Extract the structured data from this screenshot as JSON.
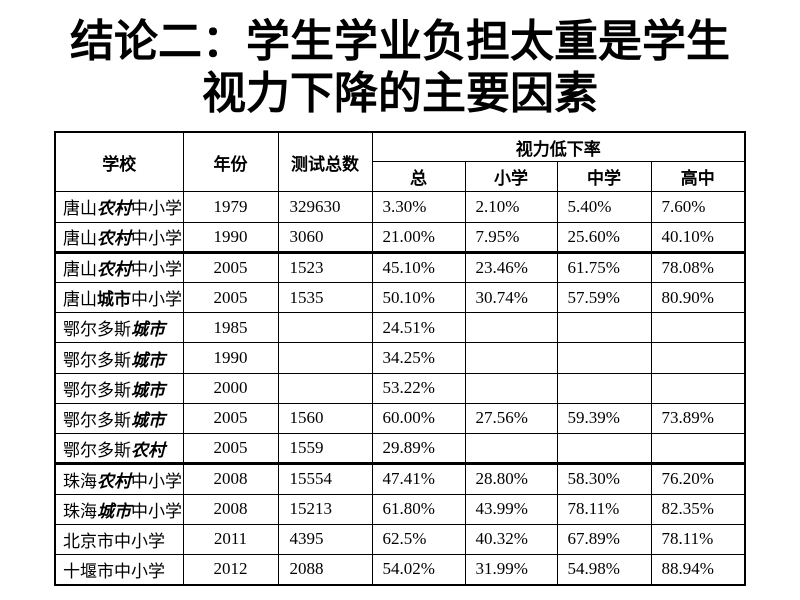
{
  "slide": {
    "title_line1": "结论二：学生学业负担太重是学生",
    "title_line2": "视力下降的主要因素"
  },
  "table": {
    "headers": {
      "school": "学校",
      "year": "年份",
      "tested_total": "测试总数",
      "low_vision_rate": "视力低下率",
      "sub_total": "总",
      "sub_primary": "小学",
      "sub_middle": "中学",
      "sub_high": "高中"
    },
    "rows": [
      {
        "school_pre": "唐山",
        "school_em": "农村",
        "school_post": "中小学",
        "em_style": "bold-italic",
        "year": "1979",
        "tested": "329630",
        "rate_total": "3.30%",
        "rate_primary": "2.10%",
        "rate_middle": "5.40%",
        "rate_high": "7.60%",
        "section_start": false
      },
      {
        "school_pre": "唐山",
        "school_em": "农村",
        "school_post": "中小学",
        "em_style": "bold-italic",
        "year": "1990",
        "tested": "3060",
        "rate_total": "21.00%",
        "rate_primary": "7.95%",
        "rate_middle": "25.60%",
        "rate_high": "40.10%",
        "section_start": false
      },
      {
        "school_pre": "唐山",
        "school_em": "农村",
        "school_post": "中小学",
        "em_style": "bold-italic",
        "year": "2005",
        "tested": "1523",
        "rate_total": "45.10%",
        "rate_primary": "23.46%",
        "rate_middle": "61.75%",
        "rate_high": "78.08%",
        "section_start": true
      },
      {
        "school_pre": "唐山",
        "school_em": "城市",
        "school_post": "中小学",
        "em_style": "bold",
        "year": "2005",
        "tested": "1535",
        "rate_total": "50.10%",
        "rate_primary": "30.74%",
        "rate_middle": "57.59%",
        "rate_high": "80.90%",
        "section_start": false
      },
      {
        "school_pre": "鄂尔多斯",
        "school_em": "城市",
        "school_post": "",
        "em_style": "bold-italic",
        "year": "1985",
        "tested": "",
        "rate_total": "24.51%",
        "rate_primary": "",
        "rate_middle": "",
        "rate_high": "",
        "section_start": false
      },
      {
        "school_pre": "鄂尔多斯",
        "school_em": "城市",
        "school_post": "",
        "em_style": "bold-italic",
        "year": "1990",
        "tested": "",
        "rate_total": "34.25%",
        "rate_primary": "",
        "rate_middle": "",
        "rate_high": "",
        "section_start": false
      },
      {
        "school_pre": "鄂尔多斯",
        "school_em": "城市",
        "school_post": "",
        "em_style": "bold-italic",
        "year": "2000",
        "tested": "",
        "rate_total": "53.22%",
        "rate_primary": "",
        "rate_middle": "",
        "rate_high": "",
        "section_start": false
      },
      {
        "school_pre": "鄂尔多斯",
        "school_em": "城市",
        "school_post": "",
        "em_style": "bold-italic",
        "year": "2005",
        "tested": "1560",
        "rate_total": "60.00%",
        "rate_primary": "27.56%",
        "rate_middle": "59.39%",
        "rate_high": "73.89%",
        "section_start": false
      },
      {
        "school_pre": "鄂尔多斯",
        "school_em": "农村",
        "school_post": "",
        "em_style": "bold-italic",
        "year": "2005",
        "tested": "1559",
        "rate_total": "29.89%",
        "rate_primary": "",
        "rate_middle": "",
        "rate_high": "",
        "section_start": false
      },
      {
        "school_pre": "珠海",
        "school_em": "农村",
        "school_post": "中小学",
        "em_style": "bold-italic",
        "year": "2008",
        "tested": "15554",
        "rate_total": "47.41%",
        "rate_primary": "28.80%",
        "rate_middle": "58.30%",
        "rate_high": "76.20%",
        "section_start": true
      },
      {
        "school_pre": "珠海",
        "school_em": "城市",
        "school_post": "中小学",
        "em_style": "bold-italic",
        "year": "2008",
        "tested": "15213",
        "rate_total": "61.80%",
        "rate_primary": "43.99%",
        "rate_middle": "78.11%",
        "rate_high": "82.35%",
        "section_start": false
      },
      {
        "school_pre": "北京市中小学",
        "school_em": "",
        "school_post": "",
        "em_style": "none",
        "year": "2011",
        "tested": "4395",
        "rate_total": "62.5%",
        "rate_primary": "40.32%",
        "rate_middle": "67.89%",
        "rate_high": "78.11%",
        "section_start": false
      },
      {
        "school_pre": "十堰市中小学",
        "school_em": "",
        "school_post": "",
        "em_style": "none",
        "year": "2012",
        "tested": "2088",
        "rate_total": "54.02%",
        "rate_primary": "31.99%",
        "rate_middle": "54.98%",
        "rate_high": "88.94%",
        "section_start": false
      }
    ]
  },
  "colors": {
    "text": "#000000",
    "border": "#000000",
    "background": "#ffffff"
  }
}
